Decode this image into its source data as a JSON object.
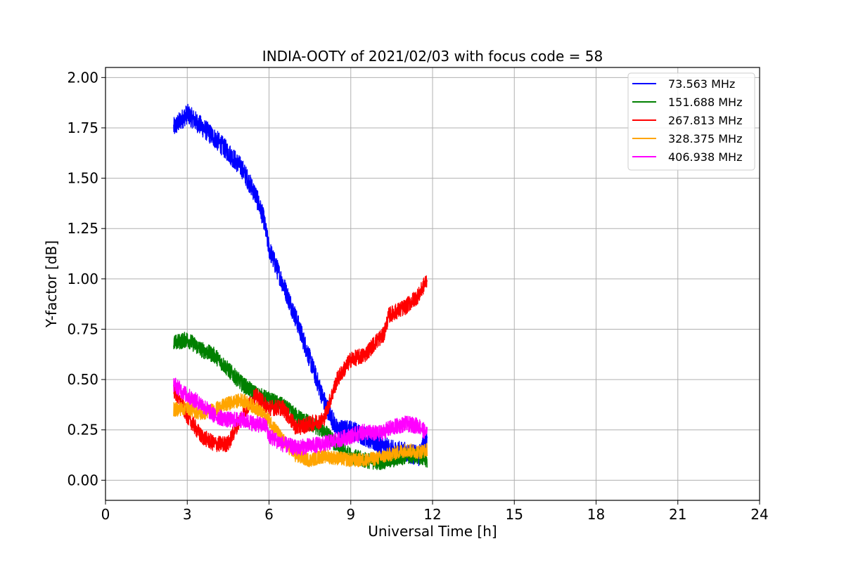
{
  "chart_data": {
    "type": "line",
    "title": "INDIA-OOTY of 2021/02/03 with focus code = 58",
    "xlabel": "Universal Time [h]",
    "ylabel": "Y-factor [dB]",
    "xlim": [
      0,
      24
    ],
    "ylim": [
      -0.1,
      2.05
    ],
    "xticks": [
      0,
      3,
      6,
      9,
      12,
      15,
      18,
      21,
      24
    ],
    "xtick_labels": [
      "0",
      "3",
      "6",
      "9",
      "12",
      "15",
      "18",
      "21",
      "24"
    ],
    "yticks": [
      0.0,
      0.25,
      0.5,
      0.75,
      1.0,
      1.25,
      1.5,
      1.75,
      2.0
    ],
    "ytick_labels": [
      "0.00",
      "0.25",
      "0.50",
      "0.75",
      "1.00",
      "1.25",
      "1.50",
      "1.75",
      "2.00"
    ],
    "grid": true,
    "legend_position": "top-right",
    "series": [
      {
        "name": "73.563 MHz",
        "color": "#0000ff",
        "noise": 0.05,
        "x": [
          2.5,
          3.0,
          3.5,
          4.0,
          4.5,
          5.0,
          5.5,
          5.8,
          6.0,
          6.5,
          7.0,
          7.5,
          8.0,
          8.5,
          9.0,
          9.5,
          10.0,
          10.5,
          11.0,
          11.5,
          11.8
        ],
        "y": [
          1.75,
          1.82,
          1.76,
          1.7,
          1.63,
          1.55,
          1.42,
          1.3,
          1.15,
          0.98,
          0.8,
          0.6,
          0.4,
          0.25,
          0.25,
          0.22,
          0.18,
          0.15,
          0.14,
          0.12,
          0.22
        ]
      },
      {
        "name": "151.688 MHz",
        "color": "#008000",
        "noise": 0.04,
        "x": [
          2.5,
          3.0,
          3.5,
          4.0,
          4.5,
          5.0,
          5.5,
          6.0,
          6.5,
          7.0,
          7.5,
          8.0,
          8.5,
          9.0,
          9.5,
          10.0,
          10.5,
          11.0,
          11.5,
          11.8
        ],
        "y": [
          0.68,
          0.7,
          0.65,
          0.62,
          0.55,
          0.48,
          0.43,
          0.4,
          0.37,
          0.32,
          0.28,
          0.25,
          0.17,
          0.12,
          0.1,
          0.09,
          0.1,
          0.12,
          0.12,
          0.1
        ]
      },
      {
        "name": "267.813 MHz",
        "color": "#ff0000",
        "noise": 0.04,
        "x": [
          2.5,
          3.0,
          3.5,
          4.0,
          4.5,
          5.0,
          5.5,
          6.0,
          6.5,
          7.0,
          7.5,
          8.0,
          8.5,
          9.0,
          9.5,
          10.0,
          10.2,
          10.4,
          11.0,
          11.5,
          11.8
        ],
        "y": [
          0.45,
          0.32,
          0.22,
          0.18,
          0.18,
          0.32,
          0.42,
          0.36,
          0.36,
          0.26,
          0.28,
          0.3,
          0.5,
          0.6,
          0.62,
          0.7,
          0.72,
          0.82,
          0.86,
          0.92,
          1.0
        ]
      },
      {
        "name": "328.375 MHz",
        "color": "#ffa500",
        "noise": 0.035,
        "x": [
          2.5,
          3.0,
          3.5,
          4.0,
          4.5,
          5.0,
          5.5,
          6.0,
          6.5,
          7.0,
          7.5,
          8.0,
          8.5,
          9.0,
          9.5,
          10.0,
          10.5,
          11.0,
          11.5,
          11.8
        ],
        "y": [
          0.35,
          0.36,
          0.33,
          0.35,
          0.38,
          0.4,
          0.36,
          0.3,
          0.2,
          0.12,
          0.1,
          0.12,
          0.11,
          0.1,
          0.1,
          0.11,
          0.13,
          0.15,
          0.14,
          0.15
        ]
      },
      {
        "name": "406.938 MHz",
        "color": "#ff00ff",
        "noise": 0.04,
        "x": [
          2.5,
          3.0,
          3.5,
          4.0,
          4.5,
          5.0,
          5.5,
          5.9,
          6.0,
          6.5,
          7.0,
          7.5,
          8.0,
          8.5,
          9.0,
          9.5,
          10.0,
          10.5,
          11.0,
          11.5,
          11.8
        ],
        "y": [
          0.48,
          0.42,
          0.38,
          0.32,
          0.3,
          0.3,
          0.28,
          0.27,
          0.22,
          0.18,
          0.16,
          0.17,
          0.18,
          0.2,
          0.22,
          0.24,
          0.23,
          0.26,
          0.28,
          0.27,
          0.23
        ]
      }
    ]
  }
}
